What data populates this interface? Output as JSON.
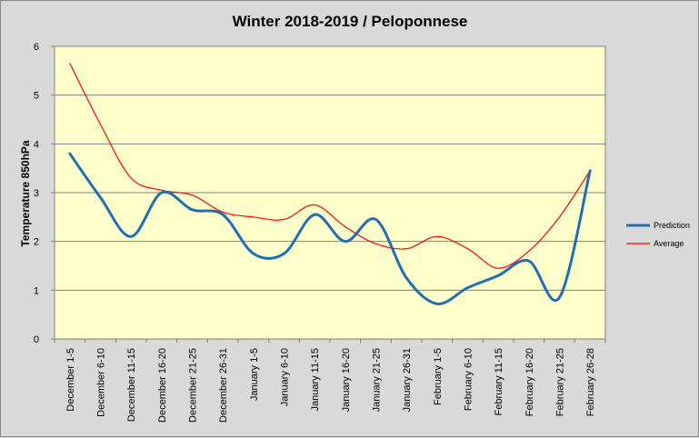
{
  "chart_data": {
    "type": "line",
    "title": "Winter 2018-2019 / Peloponnese",
    "xlabel": "",
    "ylabel": "Temperature 850hPa",
    "ylim": [
      0,
      6
    ],
    "yticks": [
      0,
      1,
      2,
      3,
      4,
      5,
      6
    ],
    "grid": true,
    "legend_position": "right",
    "plot_background": "#ffffcc",
    "categories": [
      "December 1-5",
      "December 6-10",
      "December 11-15",
      "December 16-20",
      "December 21-25",
      "December 26-31",
      "January 1-5",
      "January 6-10",
      "January 11-15",
      "January 16-20",
      "January 21-25",
      "January 26-31",
      "February 1-5",
      "February 6-10",
      "February 11-15",
      "February 16-20",
      "February 21-25",
      "February 26-28"
    ],
    "series": [
      {
        "name": "Prediction",
        "color": "#1f6fb4",
        "values": [
          3.8,
          2.9,
          2.1,
          3.0,
          2.65,
          2.55,
          1.75,
          1.75,
          2.55,
          2.0,
          2.45,
          1.25,
          0.72,
          1.05,
          1.3,
          1.6,
          0.85,
          3.45
        ]
      },
      {
        "name": "Average",
        "color": "#ff0000",
        "values": [
          5.65,
          4.4,
          3.3,
          3.05,
          2.95,
          2.6,
          2.5,
          2.45,
          2.75,
          2.3,
          1.95,
          1.85,
          2.1,
          1.85,
          1.45,
          1.8,
          2.5,
          3.45
        ]
      }
    ]
  }
}
